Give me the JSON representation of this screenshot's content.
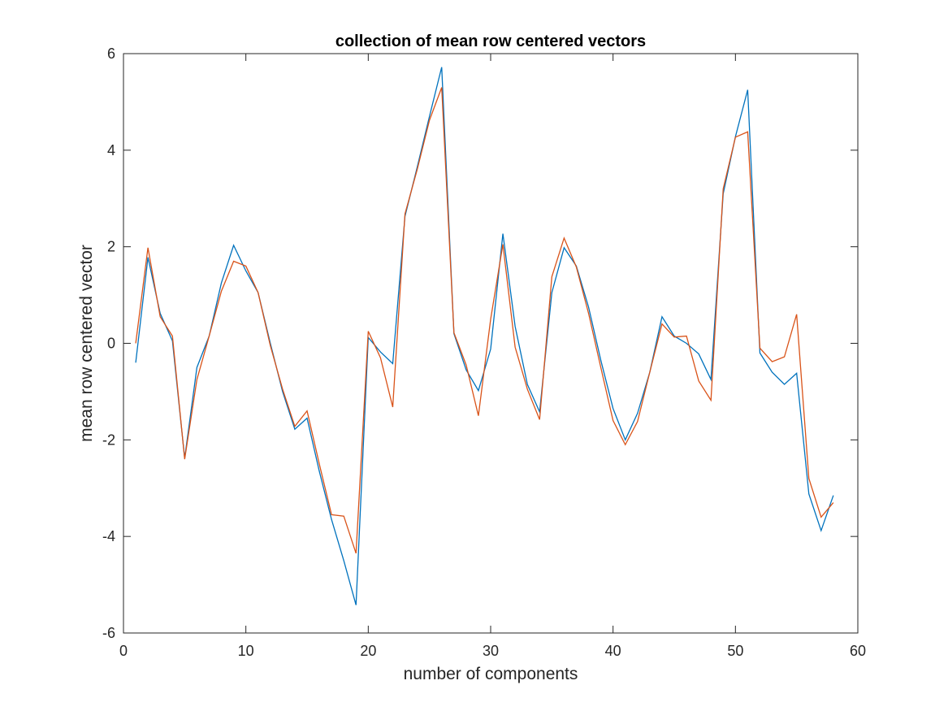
{
  "chart_data": {
    "type": "line",
    "title": "collection of mean row centered vectors",
    "xlabel": "number of components",
    "ylabel": "mean row centered vector",
    "xlim": [
      0,
      60
    ],
    "ylim": [
      -6,
      6
    ],
    "xticks": [
      0,
      10,
      20,
      30,
      40,
      50,
      60
    ],
    "yticks": [
      -6,
      -4,
      -2,
      0,
      2,
      4,
      6
    ],
    "xtick_labels": [
      "0",
      "10",
      "20",
      "30",
      "40",
      "50",
      "60"
    ],
    "ytick_labels": [
      "-6",
      "-4",
      "-2",
      "0",
      "2",
      "4",
      "6"
    ],
    "grid": false,
    "x": [
      1,
      2,
      3,
      4,
      5,
      6,
      7,
      8,
      9,
      10,
      11,
      12,
      13,
      14,
      15,
      16,
      17,
      18,
      19,
      20,
      21,
      22,
      23,
      24,
      25,
      26,
      27,
      28,
      29,
      30,
      31,
      32,
      33,
      34,
      35,
      36,
      37,
      38,
      39,
      40,
      41,
      42,
      43,
      44,
      45,
      46,
      47,
      48,
      49,
      50,
      51,
      52,
      53,
      54,
      55,
      56,
      57,
      58
    ],
    "series": [
      {
        "color": "#0072BD",
        "values": [
          -0.4,
          1.78,
          0.62,
          0.05,
          -2.38,
          -0.5,
          0.15,
          1.25,
          2.03,
          1.5,
          1.05,
          0.0,
          -1.0,
          -1.78,
          -1.55,
          -2.65,
          -3.65,
          -4.5,
          -5.42,
          0.12,
          -0.18,
          -0.42,
          2.63,
          3.65,
          4.7,
          5.72,
          0.2,
          -0.55,
          -0.98,
          -0.12,
          2.27,
          0.35,
          -0.85,
          -1.42,
          1.05,
          1.98,
          1.6,
          0.75,
          -0.35,
          -1.35,
          -2.0,
          -1.45,
          -0.6,
          0.55,
          0.15,
          0.0,
          -0.22,
          -0.75,
          3.1,
          4.28,
          5.25,
          -0.2,
          -0.6,
          -0.85,
          -0.62,
          -3.12,
          -3.88,
          -3.15
        ]
      },
      {
        "color": "#D95319",
        "values": [
          0.0,
          1.98,
          0.55,
          0.15,
          -2.4,
          -0.75,
          0.15,
          1.08,
          1.7,
          1.6,
          1.05,
          -0.05,
          -0.95,
          -1.72,
          -1.4,
          -2.5,
          -3.55,
          -3.58,
          -4.35,
          0.25,
          -0.3,
          -1.32,
          2.68,
          3.6,
          4.62,
          5.3,
          0.22,
          -0.45,
          -1.5,
          0.5,
          2.05,
          -0.08,
          -0.95,
          -1.58,
          1.38,
          2.18,
          1.58,
          0.62,
          -0.5,
          -1.6,
          -2.1,
          -1.62,
          -0.6,
          0.4,
          0.13,
          0.15,
          -0.78,
          -1.18,
          3.2,
          4.27,
          4.38,
          -0.1,
          -0.38,
          -0.28,
          0.6,
          -2.8,
          -3.6,
          -3.3
        ]
      }
    ]
  }
}
